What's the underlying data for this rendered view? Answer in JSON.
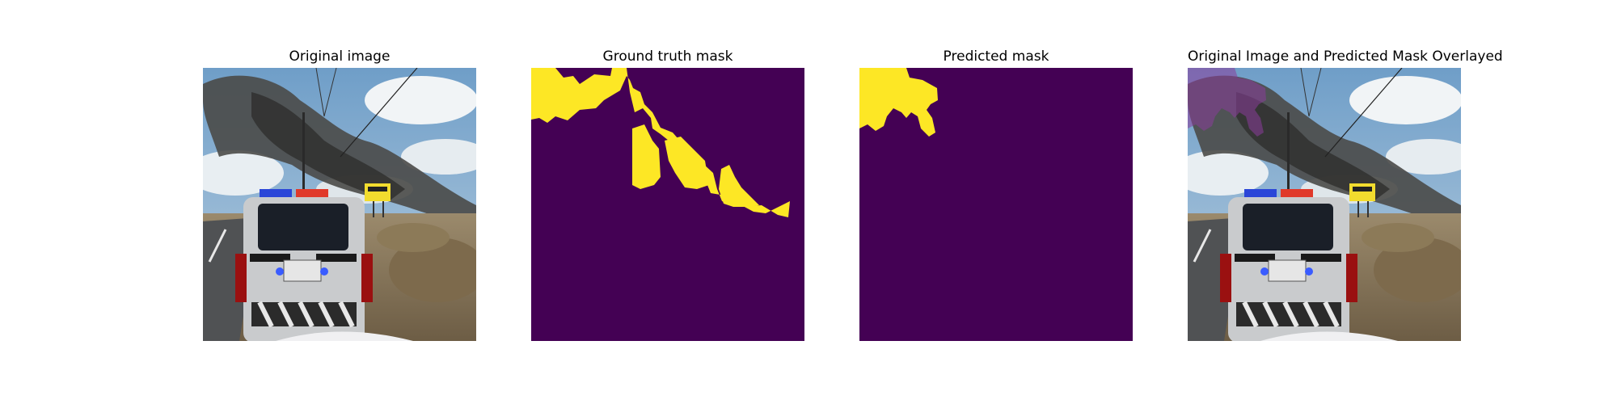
{
  "panels": [
    {
      "title": "Original image"
    },
    {
      "title": "Ground truth mask"
    },
    {
      "title": "Predicted mask"
    },
    {
      "title": "Original Image and Predicted Mask Overlayed"
    }
  ],
  "colors": {
    "mask_background": "#440154",
    "mask_foreground": "#fde725",
    "overlay_tint": "#8b3c9a"
  }
}
